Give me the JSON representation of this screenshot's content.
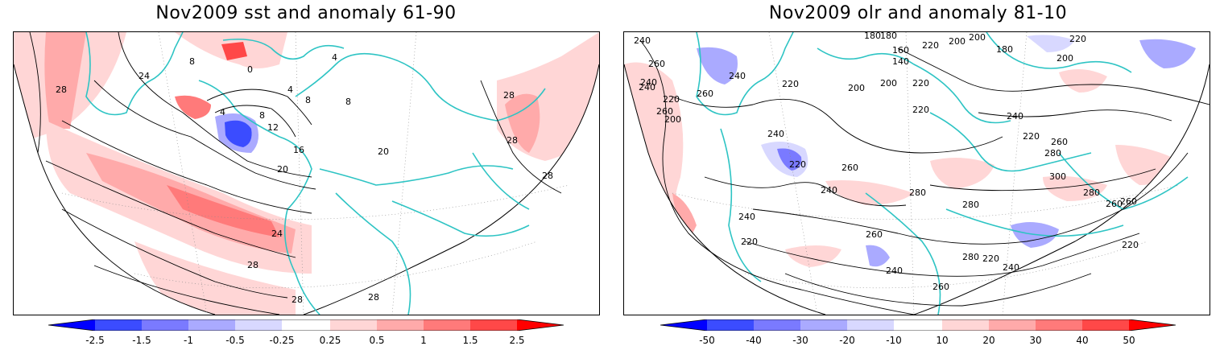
{
  "panels": [
    {
      "id": "sst",
      "title": "Nov2009 sst and anomaly 61-90",
      "colorbar_labels": [
        "-2.5",
        "-1.5",
        "-1",
        "-0.5",
        "-0.25",
        "0.25",
        "0.5",
        "1",
        "1.5",
        "2.5"
      ],
      "colorbar_colors": [
        "#0000ff",
        "#3b4cff",
        "#7a7aff",
        "#aaaaff",
        "#d8d8ff",
        "#ffffff",
        "#ffd6d6",
        "#ffaaaa",
        "#ff7a7a",
        "#ff4848",
        "#ff0000"
      ],
      "contour_labels": [
        "8",
        "0",
        "4",
        "4",
        "8",
        "8",
        "12",
        "16",
        "20",
        "24",
        "28",
        "28",
        "28",
        "28",
        "4",
        "8",
        "20",
        "24",
        "28",
        "28",
        "28"
      ]
    },
    {
      "id": "olr",
      "title": "Nov2009 olr and anomaly 81-10",
      "colorbar_labels": [
        "-50",
        "-40",
        "-30",
        "-20",
        "-10",
        "10",
        "20",
        "30",
        "40",
        "50"
      ],
      "colorbar_colors": [
        "#0000ff",
        "#3b4cff",
        "#7a7aff",
        "#aaaaff",
        "#d8d8ff",
        "#ffffff",
        "#ffd6d6",
        "#ffaaaa",
        "#ff7a7a",
        "#ff4848",
        "#ff0000"
      ],
      "contour_labels": [
        "240",
        "180",
        "180",
        "160",
        "140",
        "220",
        "200",
        "200",
        "180",
        "200",
        "220",
        "260",
        "240",
        "220",
        "200",
        "200",
        "220",
        "240",
        "260",
        "220",
        "240",
        "220",
        "260",
        "220",
        "240",
        "280",
        "220",
        "260",
        "240",
        "300",
        "280",
        "260",
        "280",
        "260",
        "240",
        "280",
        "260",
        "240",
        "220",
        "280",
        "240",
        "220",
        "260",
        "260",
        "240",
        "200",
        "220"
      ]
    }
  ],
  "colors": {
    "coastline": "#2ec4c4",
    "contour": "#000000",
    "positive_anomaly": "#ff8a8a",
    "negative_anomaly": "#7a7aff"
  }
}
